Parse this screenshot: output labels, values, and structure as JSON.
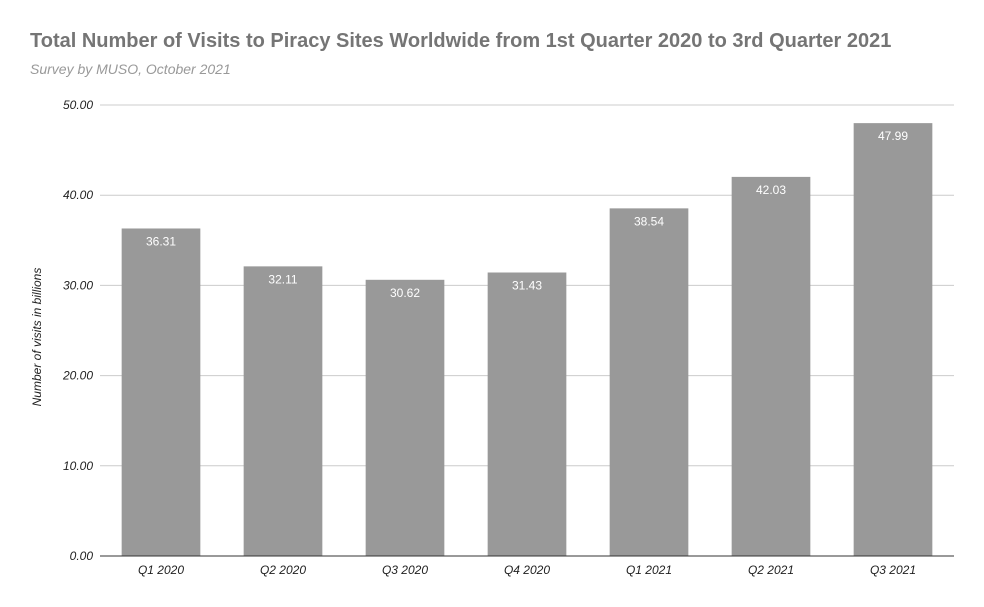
{
  "chart_data": {
    "type": "bar",
    "title": "Total Number of Visits to Piracy Sites Worldwide from 1st Quarter 2020 to 3rd Quarter 2021",
    "subtitle": "Survey by MUSO, October 2021",
    "xlabel": "",
    "ylabel": "Number of visits in billions",
    "categories": [
      "Q1 2020",
      "Q2 2020",
      "Q3 2020",
      "Q4 2020",
      "Q1 2021",
      "Q2 2021",
      "Q3 2021"
    ],
    "values": [
      36.31,
      32.11,
      30.62,
      31.43,
      38.54,
      42.03,
      47.99
    ],
    "value_labels": [
      "36.31",
      "32.11",
      "30.62",
      "31.43",
      "38.54",
      "42.03",
      "47.99"
    ],
    "ylim": [
      0,
      50
    ],
    "yticks": [
      0,
      10,
      20,
      30,
      40,
      50
    ],
    "ytick_labels": [
      "0.00",
      "10.00",
      "20.00",
      "30.00",
      "40.00",
      "50.00"
    ],
    "grid": true,
    "legend": "none",
    "colors": {
      "bar": "#999999",
      "bar_label": "#ffffff",
      "grid": "#cccccc",
      "axis": "#333333",
      "title": "#757575",
      "subtitle": "#999999",
      "tick_text": "#222222"
    }
  }
}
